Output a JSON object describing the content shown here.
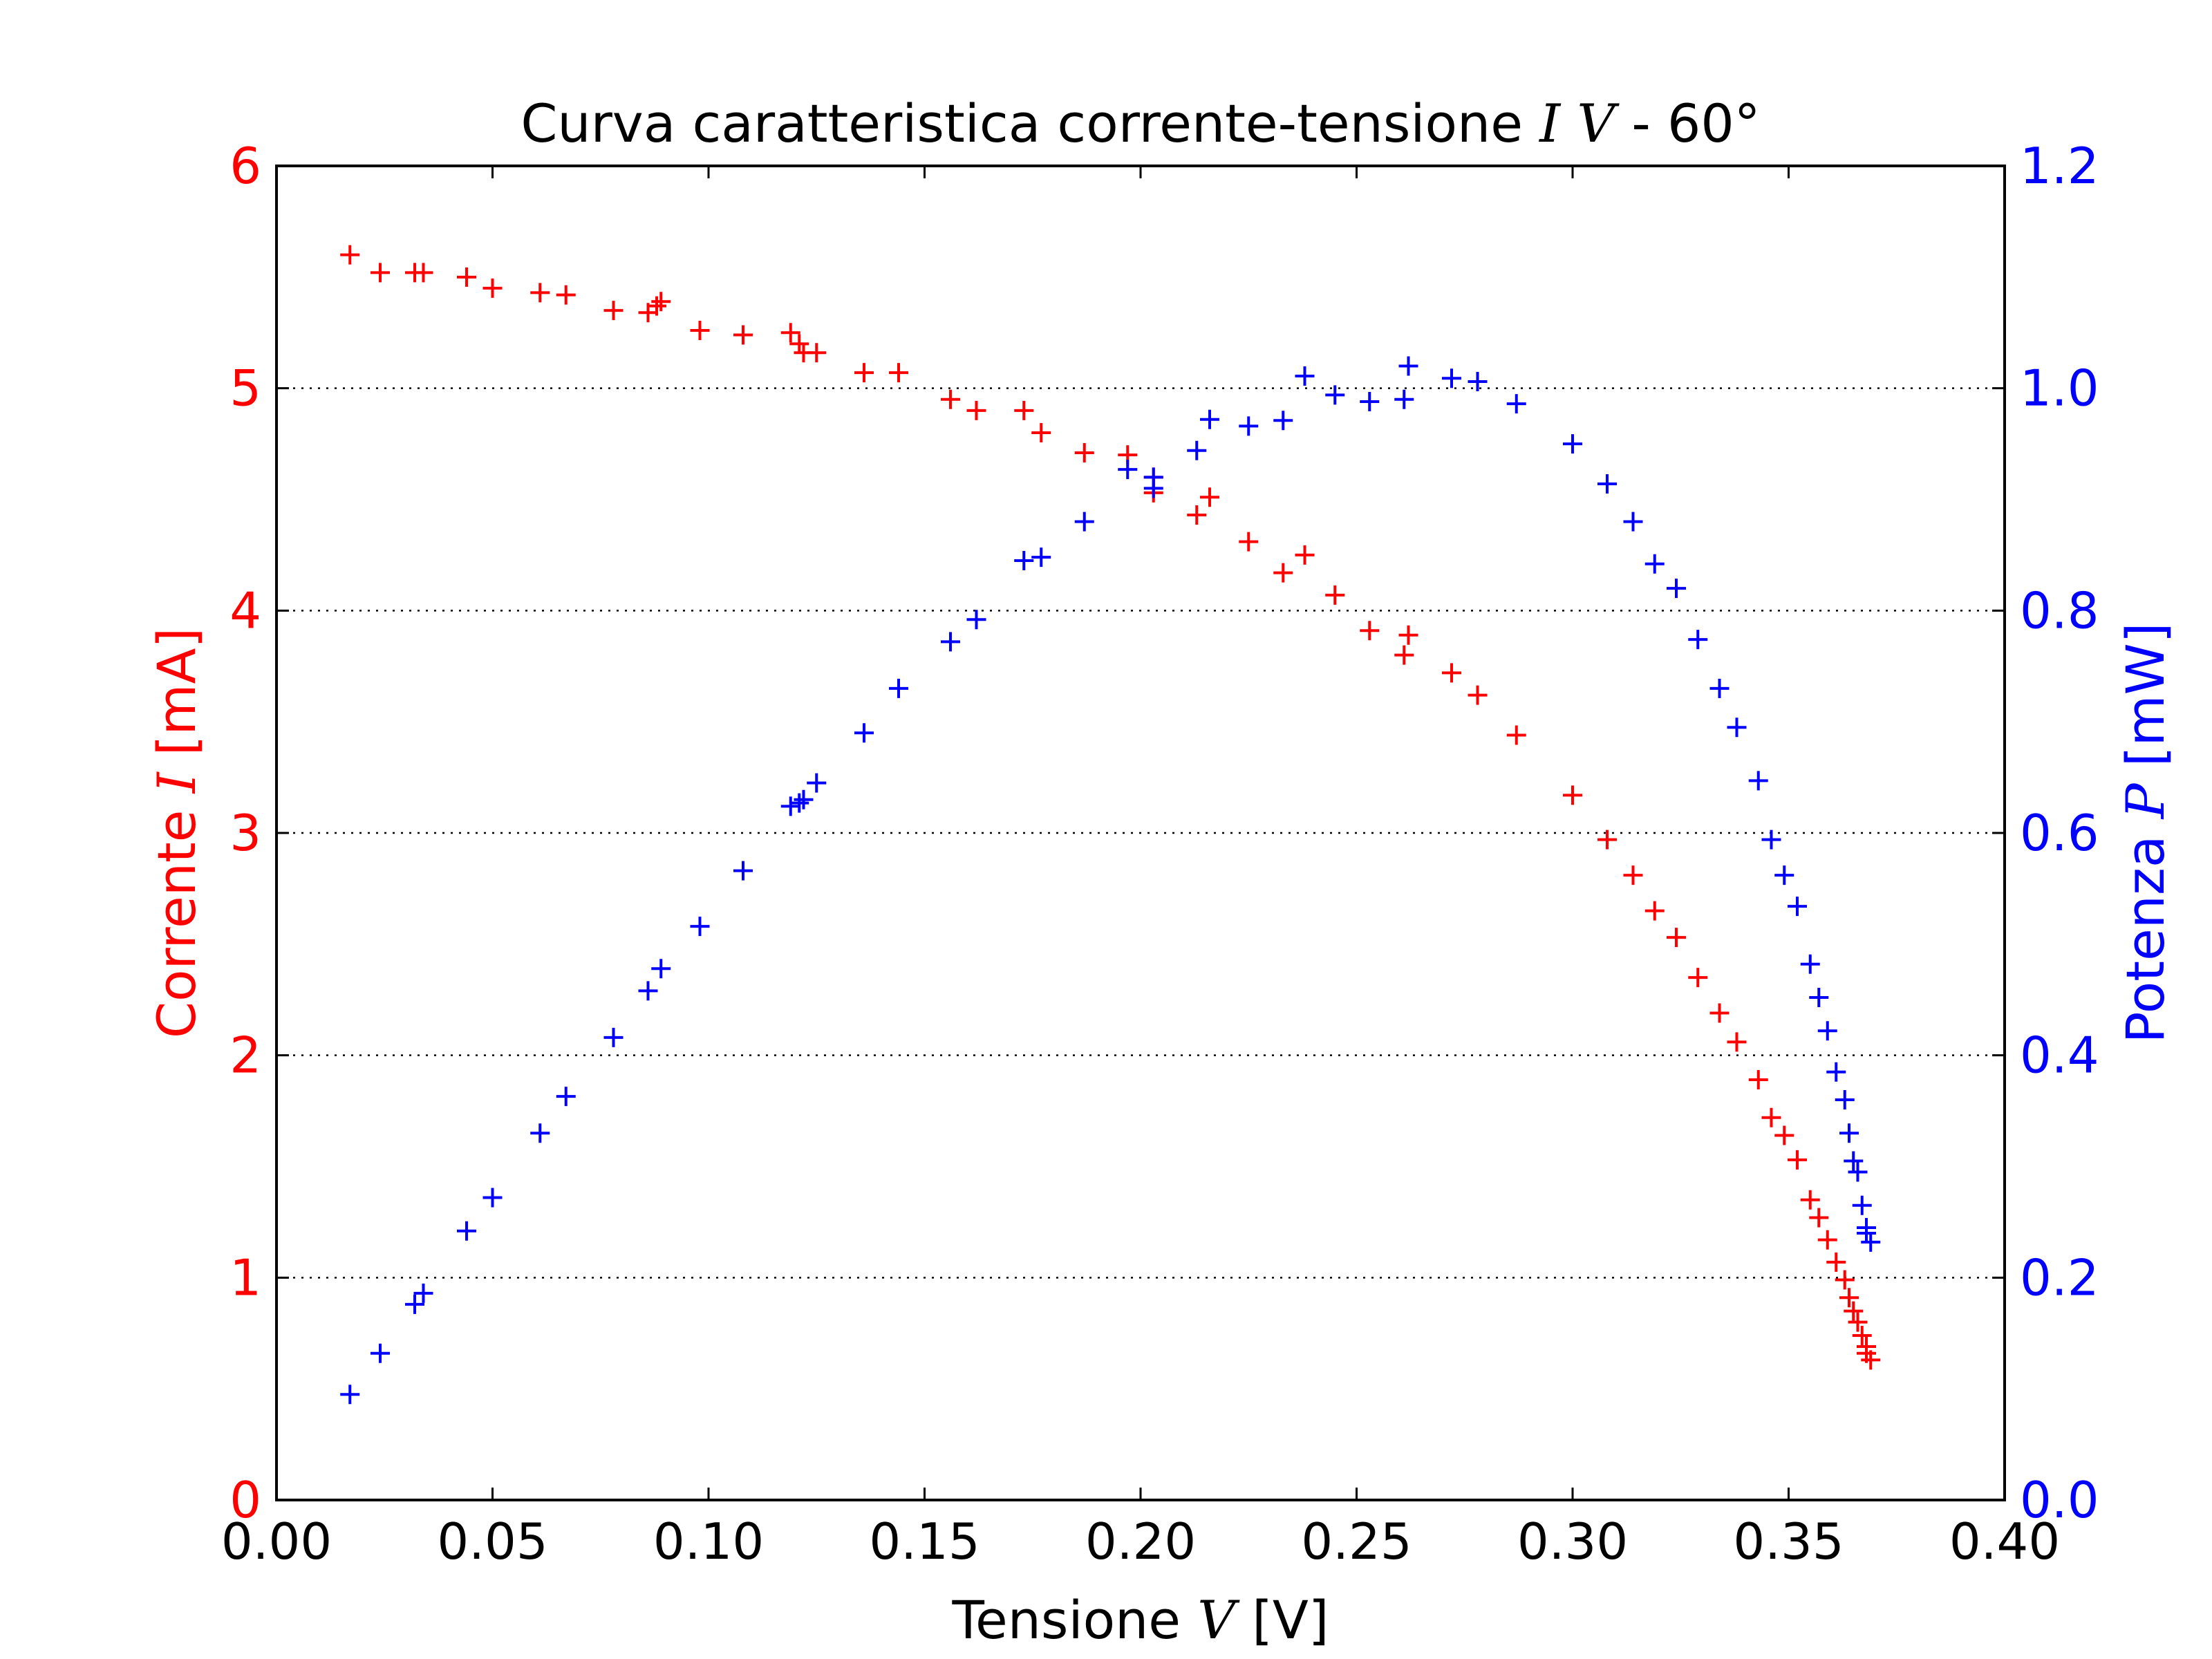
{
  "chart_data": {
    "type": "scatter",
    "title": {
      "text": "Curva caratteristica corrente-tensione ",
      "math": "I V",
      "suffix": " - 60°"
    },
    "xlabel": {
      "text": "Tensione ",
      "math": "V",
      "suffix": " [V]"
    },
    "ylabel_left": {
      "text": "Corrente ",
      "math": "I",
      "suffix": " [mA]"
    },
    "ylabel_right": {
      "text": "Potenza ",
      "math": "P",
      "suffix": " [mW]"
    },
    "xlim": [
      0,
      0.4
    ],
    "ylim_left": [
      0,
      6
    ],
    "ylim_right": [
      0,
      1.2
    ],
    "xticks": [
      "0.00",
      "0.05",
      "0.10",
      "0.15",
      "0.20",
      "0.25",
      "0.30",
      "0.35",
      "0.40"
    ],
    "yticks_left": [
      "0",
      "1",
      "2",
      "3",
      "4",
      "5",
      "6"
    ],
    "yticks_right": [
      "0.0",
      "0.2",
      "0.4",
      "0.6",
      "0.8",
      "1.0",
      "1.2"
    ],
    "grid": "horizontal dotted",
    "colors": {
      "current": "#ff0000",
      "power": "#0000ff",
      "axes": "#000000"
    },
    "marker": "+",
    "series": [
      {
        "axis": "left",
        "color": "#ff0000",
        "points": [
          [
            0.017,
            5.6
          ],
          [
            0.024,
            5.52
          ],
          [
            0.032,
            5.52
          ],
          [
            0.034,
            5.52
          ],
          [
            0.044,
            5.5
          ],
          [
            0.05,
            5.45
          ],
          [
            0.061,
            5.43
          ],
          [
            0.067,
            5.42
          ],
          [
            0.078,
            5.35
          ],
          [
            0.086,
            5.34
          ],
          [
            0.088,
            5.37
          ],
          [
            0.089,
            5.39
          ],
          [
            0.098,
            5.26
          ],
          [
            0.108,
            5.24
          ],
          [
            0.119,
            5.25
          ],
          [
            0.121,
            5.2
          ],
          [
            0.122,
            5.16
          ],
          [
            0.125,
            5.16
          ],
          [
            0.136,
            5.07
          ],
          [
            0.144,
            5.07
          ],
          [
            0.156,
            4.95
          ],
          [
            0.162,
            4.9
          ],
          [
            0.173,
            4.9
          ],
          [
            0.177,
            4.8
          ],
          [
            0.187,
            4.71
          ],
          [
            0.197,
            4.7
          ],
          [
            0.203,
            4.6
          ],
          [
            0.203,
            4.53
          ],
          [
            0.213,
            4.43
          ],
          [
            0.216,
            4.51
          ],
          [
            0.225,
            4.31
          ],
          [
            0.233,
            4.17
          ],
          [
            0.238,
            4.25
          ],
          [
            0.245,
            4.07
          ],
          [
            0.253,
            3.91
          ],
          [
            0.261,
            3.8
          ],
          [
            0.262,
            3.89
          ],
          [
            0.272,
            3.72
          ],
          [
            0.278,
            3.62
          ],
          [
            0.287,
            3.44
          ],
          [
            0.3,
            3.17
          ],
          [
            0.308,
            2.97
          ],
          [
            0.314,
            2.81
          ],
          [
            0.319,
            2.65
          ],
          [
            0.324,
            2.53
          ],
          [
            0.329,
            2.35
          ],
          [
            0.334,
            2.19
          ],
          [
            0.338,
            2.06
          ],
          [
            0.343,
            1.89
          ],
          [
            0.346,
            1.72
          ],
          [
            0.349,
            1.64
          ],
          [
            0.352,
            1.53
          ],
          [
            0.355,
            1.35
          ],
          [
            0.357,
            1.27
          ],
          [
            0.359,
            1.17
          ],
          [
            0.361,
            1.07
          ],
          [
            0.363,
            0.99
          ],
          [
            0.364,
            0.91
          ],
          [
            0.365,
            0.85
          ],
          [
            0.366,
            0.8
          ],
          [
            0.367,
            0.74
          ],
          [
            0.368,
            0.69
          ],
          [
            0.368,
            0.66
          ],
          [
            0.369,
            0.63
          ]
        ]
      },
      {
        "axis": "right",
        "color": "#0000ff",
        "points": [
          [
            0.017,
            0.095
          ],
          [
            0.024,
            0.132
          ],
          [
            0.032,
            0.176
          ],
          [
            0.034,
            0.186
          ],
          [
            0.044,
            0.242
          ],
          [
            0.05,
            0.272
          ],
          [
            0.061,
            0.33
          ],
          [
            0.067,
            0.363
          ],
          [
            0.078,
            0.416
          ],
          [
            0.086,
            0.458
          ],
          [
            0.089,
            0.478
          ],
          [
            0.098,
            0.516
          ],
          [
            0.108,
            0.566
          ],
          [
            0.119,
            0.624
          ],
          [
            0.121,
            0.627
          ],
          [
            0.122,
            0.63
          ],
          [
            0.125,
            0.645
          ],
          [
            0.136,
            0.69
          ],
          [
            0.144,
            0.73
          ],
          [
            0.156,
            0.772
          ],
          [
            0.162,
            0.792
          ],
          [
            0.173,
            0.845
          ],
          [
            0.177,
            0.848
          ],
          [
            0.187,
            0.88
          ],
          [
            0.197,
            0.927
          ],
          [
            0.203,
            0.92
          ],
          [
            0.203,
            0.91
          ],
          [
            0.213,
            0.944
          ],
          [
            0.216,
            0.972
          ],
          [
            0.225,
            0.966
          ],
          [
            0.233,
            0.971
          ],
          [
            0.238,
            1.011
          ],
          [
            0.245,
            0.994
          ],
          [
            0.253,
            0.988
          ],
          [
            0.261,
            0.99
          ],
          [
            0.262,
            1.02
          ],
          [
            0.272,
            1.009
          ],
          [
            0.278,
            1.006
          ],
          [
            0.287,
            0.986
          ],
          [
            0.3,
            0.95
          ],
          [
            0.308,
            0.914
          ],
          [
            0.314,
            0.88
          ],
          [
            0.319,
            0.842
          ],
          [
            0.324,
            0.82
          ],
          [
            0.329,
            0.774
          ],
          [
            0.334,
            0.73
          ],
          [
            0.338,
            0.695
          ],
          [
            0.343,
            0.647
          ],
          [
            0.346,
            0.594
          ],
          [
            0.349,
            0.562
          ],
          [
            0.352,
            0.534
          ],
          [
            0.355,
            0.482
          ],
          [
            0.357,
            0.452
          ],
          [
            0.359,
            0.422
          ],
          [
            0.361,
            0.385
          ],
          [
            0.363,
            0.36
          ],
          [
            0.364,
            0.33
          ],
          [
            0.365,
            0.305
          ],
          [
            0.366,
            0.295
          ],
          [
            0.367,
            0.265
          ],
          [
            0.368,
            0.245
          ],
          [
            0.368,
            0.24
          ],
          [
            0.369,
            0.232
          ]
        ]
      }
    ]
  }
}
